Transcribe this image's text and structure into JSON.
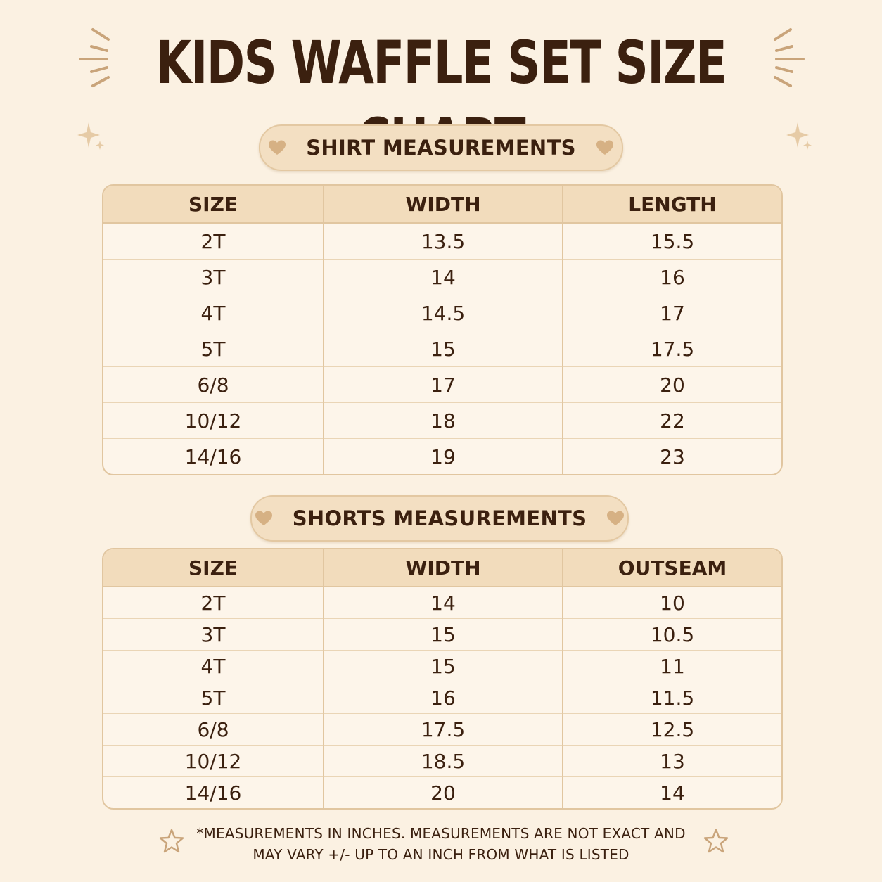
{
  "title": "KIDS WAFFLE SET SIZE CHART",
  "colors": {
    "background": "#fbf1e2",
    "text": "#3b200f",
    "header": "#f2dcbc",
    "accent": "#d8b68a"
  },
  "icons": [
    "sunburst-icon",
    "sparkle-icon",
    "heart-icon",
    "star-icon"
  ],
  "shirt": {
    "heading": "SHIRT MEASUREMENTS",
    "columns": [
      "SIZE",
      "WIDTH",
      "LENGTH"
    ],
    "rows": [
      [
        "2T",
        "13.5",
        "15.5"
      ],
      [
        "3T",
        "14",
        "16"
      ],
      [
        "4T",
        "14.5",
        "17"
      ],
      [
        "5T",
        "15",
        "17.5"
      ],
      [
        "6/8",
        "17",
        "20"
      ],
      [
        "10/12",
        "18",
        "22"
      ],
      [
        "14/16",
        "19",
        "23"
      ]
    ]
  },
  "shorts": {
    "heading": "SHORTS MEASUREMENTS",
    "columns": [
      "SIZE",
      "WIDTH",
      "OUTSEAM"
    ],
    "rows": [
      [
        "2T",
        "14",
        "10"
      ],
      [
        "3T",
        "15",
        "10.5"
      ],
      [
        "4T",
        "15",
        "11"
      ],
      [
        "5T",
        "16",
        "11.5"
      ],
      [
        "6/8",
        "17.5",
        "12.5"
      ],
      [
        "10/12",
        "18.5",
        "13"
      ],
      [
        "14/16",
        "20",
        "14"
      ]
    ]
  },
  "note": {
    "line1": "*MEASUREMENTS IN INCHES. MEASUREMENTS ARE NOT EXACT AND",
    "line2": "MAY VARY +/- UP TO AN INCH FROM WHAT IS LISTED"
  }
}
